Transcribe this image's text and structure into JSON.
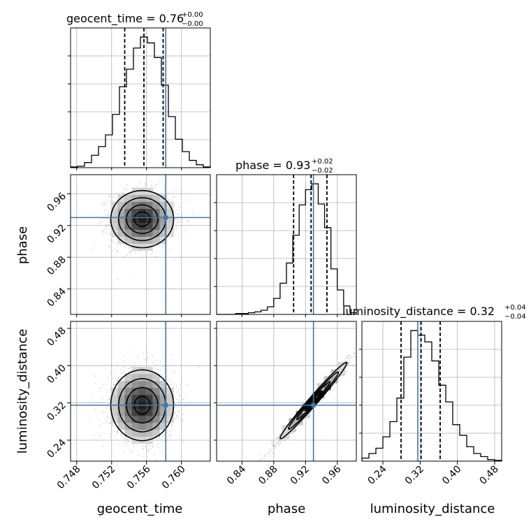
{
  "chart_data": {
    "type": "corner",
    "parameters": [
      "geocent_time",
      "phase",
      "luminosity_distance"
    ],
    "truth": {
      "geocent_time": 0.7582,
      "phase": 0.93,
      "luminosity_distance": 0.315
    },
    "colors": {
      "truth": "#3a7ab0",
      "hist": "#000000",
      "grid": "#b0b0b0",
      "scatter": "#8c8c8c"
    },
    "grid": true,
    "axes": {
      "geocent_time": {
        "label": "geocent_time",
        "range": [
          0.7473,
          0.7633
        ],
        "ticks": [
          0.748,
          0.752,
          0.756,
          0.76
        ],
        "tick_labels": [
          "0.748",
          "0.752",
          "0.756",
          "0.760"
        ]
      },
      "phase": {
        "label": "phase",
        "range": [
          0.808,
          0.984
        ],
        "ticks": [
          0.84,
          0.88,
          0.92,
          0.96
        ],
        "tick_labels": [
          "0.84",
          "0.88",
          "0.92",
          "0.96"
        ]
      },
      "luminosity_distance": {
        "label": "luminosity_distance",
        "range": [
          0.195,
          0.495
        ],
        "ticks": [
          0.24,
          0.32,
          0.4,
          0.48
        ],
        "tick_labels": [
          "0.24",
          "0.32",
          "0.40",
          "0.48"
        ]
      }
    },
    "titles": {
      "geocent_time": {
        "main": "geocent_time = 0.76",
        "plus": "+0.00",
        "minus": "−0.00"
      },
      "phase": {
        "main": "phase = 0.93",
        "plus": "+0.02",
        "minus": "−0.02"
      },
      "luminosity_distance": {
        "main": "luminosity_distance = 0.32",
        "plus": "+0.04",
        "minus": "−0.04"
      }
    },
    "histograms": {
      "geocent_time": {
        "bin_edges": [
          0.7473,
          0.7481,
          0.7489,
          0.7497,
          0.7505,
          0.7513,
          0.7521,
          0.7529,
          0.7537,
          0.7545,
          0.7553,
          0.7561,
          0.7569,
          0.7577,
          0.7585,
          0.7593,
          0.7601,
          0.7609,
          0.7617,
          0.7625,
          0.7633
        ],
        "counts": [
          1,
          2,
          7,
          17,
          29,
          45,
          73,
          111,
          135,
          164,
          179,
          171,
          151,
          113,
          70,
          39,
          22,
          10,
          4,
          1
        ],
        "quantiles": [
          0.7535,
          0.7557,
          0.7579
        ]
      },
      "phase": {
        "bin_edges": [
          0.808,
          0.816,
          0.824,
          0.832,
          0.84,
          0.848,
          0.856,
          0.864,
          0.872,
          0.88,
          0.888,
          0.896,
          0.904,
          0.912,
          0.92,
          0.928,
          0.936,
          0.944,
          0.952,
          0.96,
          0.968,
          0.976,
          0.984
        ],
        "counts": [
          0,
          0,
          0,
          1,
          1,
          2,
          3,
          5,
          9,
          19,
          37,
          61,
          94,
          130,
          148,
          155,
          131,
          103,
          54,
          29,
          10,
          2
        ],
        "quantiles": [
          0.905,
          0.927,
          0.947
        ]
      },
      "luminosity_distance": {
        "bin_edges": [
          0.195,
          0.21,
          0.225,
          0.24,
          0.255,
          0.27,
          0.285,
          0.3,
          0.315,
          0.33,
          0.345,
          0.36,
          0.375,
          0.39,
          0.405,
          0.42,
          0.435,
          0.45,
          0.465,
          0.48,
          0.495
        ],
        "counts": [
          4,
          10,
          17,
          32,
          52,
          83,
          137,
          172,
          166,
          157,
          132,
          100,
          78,
          48,
          34,
          19,
          10,
          6,
          2,
          1
        ],
        "quantiles": [
          0.279,
          0.322,
          0.363
        ]
      }
    },
    "pairs": [
      {
        "x": "geocent_time",
        "y": "phase",
        "center": [
          0.7555,
          0.928
        ],
        "sigma": [
          0.0018,
          0.018
        ],
        "rho": 0.0
      },
      {
        "x": "geocent_time",
        "y": "luminosity_distance",
        "center": [
          0.7555,
          0.315
        ],
        "sigma": [
          0.0018,
          0.038
        ],
        "rho": 0.0
      },
      {
        "x": "phase",
        "y": "luminosity_distance",
        "center": [
          0.93,
          0.325
        ],
        "sigma": [
          0.021,
          0.041
        ],
        "rho": 0.985
      }
    ]
  }
}
